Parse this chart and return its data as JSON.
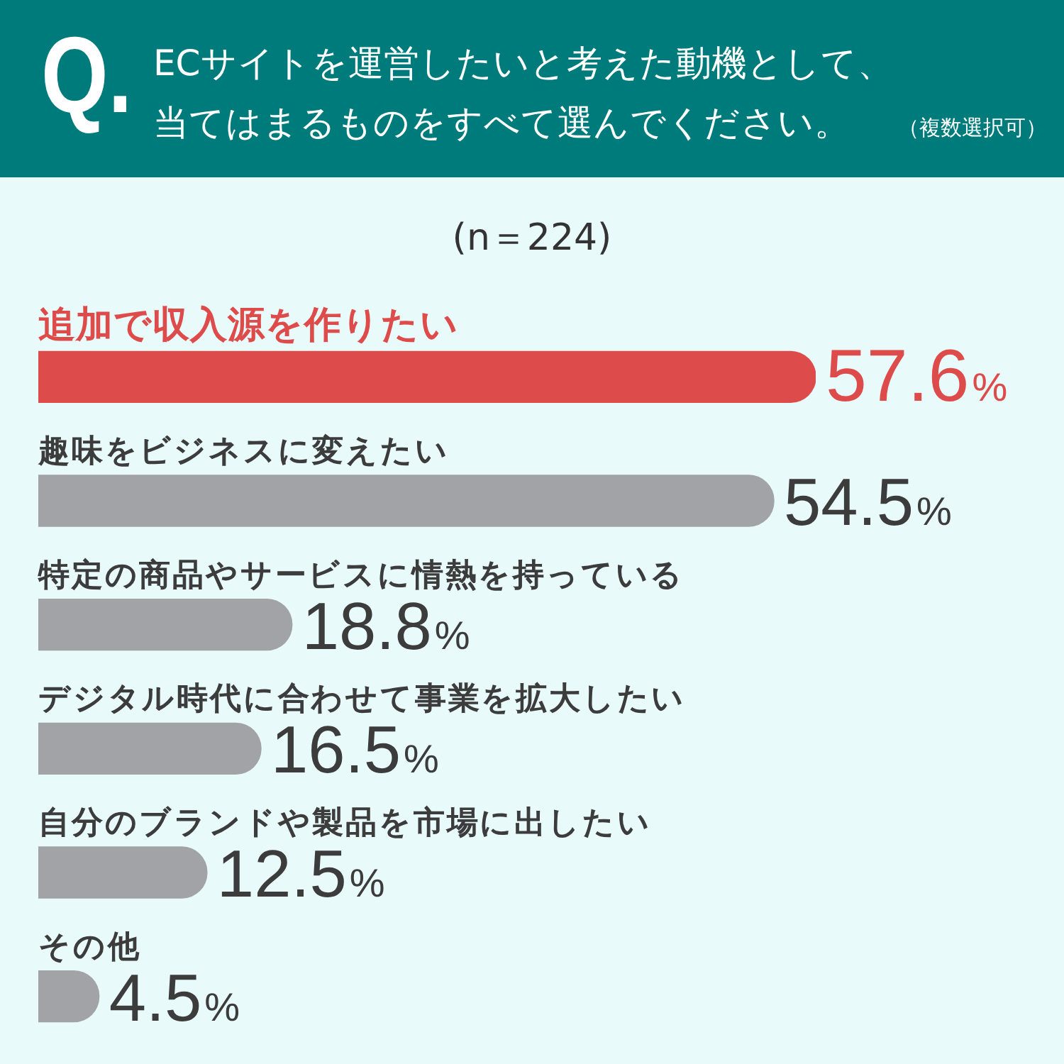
{
  "chart_data": {
    "type": "bar",
    "orientation": "horizontal",
    "title": "ECサイトを運営したいと考えた動機として、当てはまるものをすべて選んでください。",
    "subtitle": "(n＝224)",
    "annotations": [
      "Q.",
      "（複数選択可）"
    ],
    "categories": [
      "追加で収入源を作りたい",
      "趣味をビジネスに変えたい",
      "特定の商品やサービスに情熱を持っている",
      "デジタル時代に合わせて事業を拡大したい",
      "自分のブランドや製品を市場に出したい",
      "その他"
    ],
    "values": [
      57.6,
      54.5,
      18.8,
      16.5,
      12.5,
      4.5
    ],
    "colors": [
      "#de4b4b",
      "#a2a3a7",
      "#a2a3a7",
      "#a2a3a7",
      "#a2a3a7",
      "#a2a3a7"
    ],
    "value_labels": [
      "57.6%",
      "54.5%",
      "18.8%",
      "16.5%",
      "12.5%",
      "4.5%"
    ]
  }
}
